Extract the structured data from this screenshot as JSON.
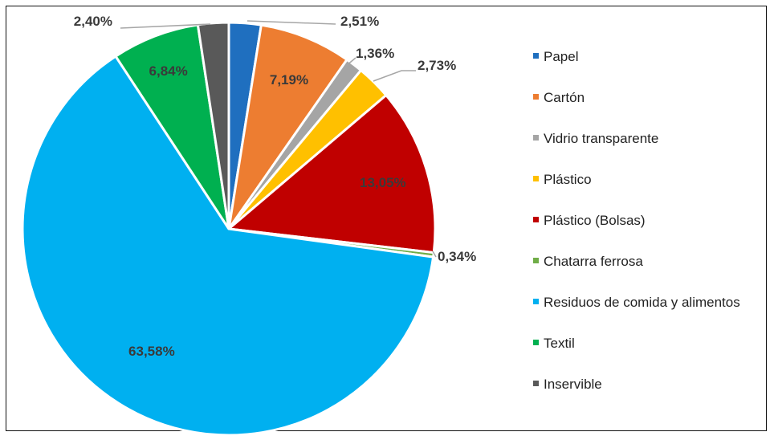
{
  "chart_data": {
    "type": "pie",
    "title": "",
    "legend_placement": "right",
    "slices": [
      {
        "name": "Papel",
        "value": 2.51,
        "label": "2,51%",
        "color": "#1f6fbf"
      },
      {
        "name": "Cartón",
        "value": 7.19,
        "label": "7,19%",
        "color": "#ed7d31"
      },
      {
        "name": "Vidrio transparente",
        "value": 1.36,
        "label": "1,36%",
        "color": "#a5a5a5"
      },
      {
        "name": "Plástico",
        "value": 2.73,
        "label": "2,73%",
        "color": "#ffc000"
      },
      {
        "name": "Plástico (Bolsas)",
        "value": 13.05,
        "label": "13,05%",
        "color": "#c00000"
      },
      {
        "name": "Chatarra ferrosa",
        "value": 0.34,
        "label": "0,34%",
        "color": "#70ad47"
      },
      {
        "name": "Residuos de comida y alimentos",
        "value": 63.58,
        "label": "63,58%",
        "color": "#00b0f0"
      },
      {
        "name": "Textil",
        "value": 6.84,
        "label": "6,84%",
        "color": "#00b050"
      },
      {
        "name": "Inservible",
        "value": 2.4,
        "label": "2,40%",
        "color": "#595959"
      }
    ]
  }
}
